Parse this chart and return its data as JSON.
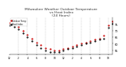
{
  "title": "Milwaukee Weather Outdoor Temperature\nvs Heat Index\n(24 Hours)",
  "title_fontsize": 3.2,
  "title_color": "#333333",
  "bg_color": "#ffffff",
  "plot_bg_color": "#ffffff",
  "grid_color": "#aaaaaa",
  "ylim": [
    52,
    80
  ],
  "xlim": [
    0,
    23
  ],
  "temp_color": "#cc0000",
  "heat_color": "#000000",
  "orange_color": "#ff8800",
  "legend_temp": "Outdoor Temp",
  "legend_heat": "Heat Index",
  "vgrid_positions": [
    2,
    4,
    6,
    8,
    10,
    12,
    14,
    16,
    18,
    20,
    22
  ],
  "temp_x": [
    0,
    1,
    2,
    3,
    4,
    5,
    6,
    7,
    8,
    9,
    10,
    11,
    12,
    13,
    14,
    15,
    16,
    17,
    18,
    19,
    20,
    21,
    22,
    23
  ],
  "temp_y": [
    76,
    75,
    73,
    70,
    67,
    64,
    61,
    59,
    57,
    56,
    55,
    55,
    56,
    57,
    58,
    59,
    60,
    61,
    62,
    63,
    64,
    66,
    74,
    77
  ],
  "heat_x": [
    0,
    1,
    2,
    3,
    4,
    5,
    6,
    7,
    8,
    9,
    10,
    11,
    12,
    13,
    14,
    15,
    16,
    17,
    18,
    19,
    20,
    21,
    22,
    23
  ],
  "heat_y": [
    74,
    73,
    71,
    68,
    65,
    62,
    59,
    57,
    55,
    54,
    54,
    54,
    55,
    56,
    57,
    58,
    59,
    60,
    61,
    62,
    63,
    64,
    72,
    75
  ],
  "yticks": [
    55,
    60,
    65,
    70,
    75
  ],
  "xtick_pos": [
    0,
    2,
    4,
    6,
    8,
    10,
    12,
    14,
    16,
    18,
    20,
    22
  ],
  "xtick_labels": [
    "12",
    "2",
    "4",
    "6",
    "8",
    "10",
    "12",
    "2",
    "4",
    "6",
    "8",
    "10"
  ],
  "markersize": 1.2
}
